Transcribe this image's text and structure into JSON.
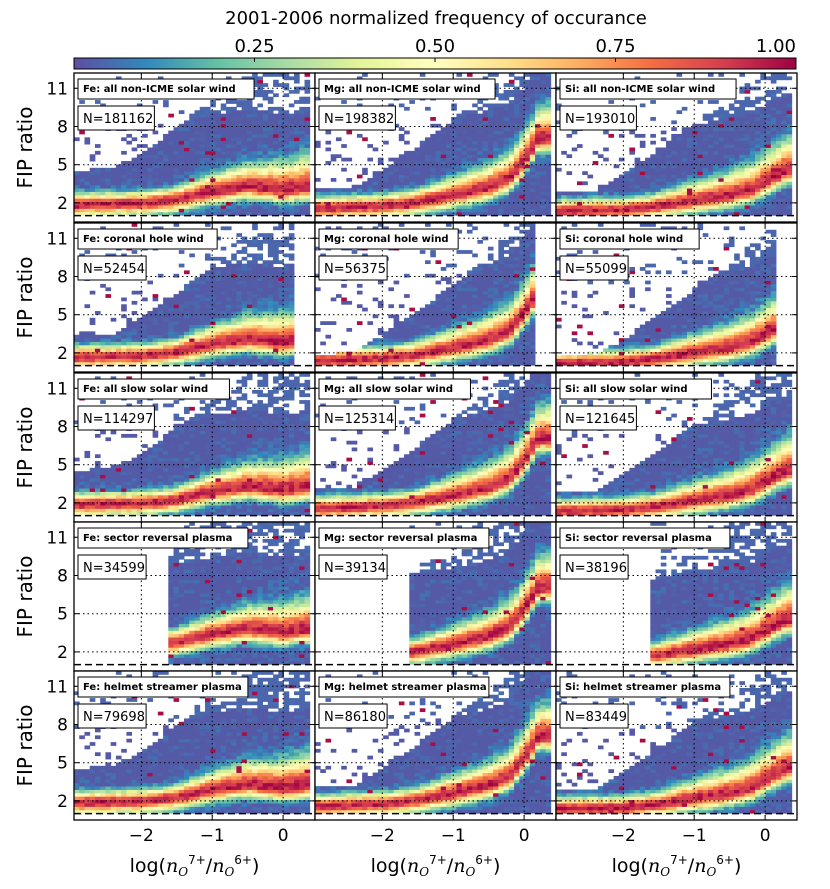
{
  "figure": {
    "colorbar_title": "2001-2006 normalized frequency of occurance",
    "colorbar_ticks": [
      0.25,
      0.5,
      0.75,
      1.0
    ],
    "colorbar_tick_labels": [
      "0.25",
      "0.50",
      "0.75",
      "1.00"
    ],
    "ylabel": "FIP ratio",
    "xlabel_main": "log(",
    "xlabel_num": "n",
    "xlabel_num_sub": "O",
    "xlabel_num_sup": "7+",
    "xlabel_sep": "/",
    "xlabel_den": "n",
    "xlabel_den_sub": "O",
    "xlabel_den_sup": "6+",
    "xlabel_close": ")"
  },
  "chart_data": {
    "type": "heatmap",
    "title": "2001-2006 normalized frequency of occurance",
    "xlabel": "log(n_O7+/n_O6+)",
    "ylabel": "FIP ratio",
    "xlim": [
      -2.95,
      0.45
    ],
    "ylim": [
      0.5,
      12.2
    ],
    "xticks": [
      -2,
      -1,
      0
    ],
    "xtick_labels": [
      "−2",
      "−1",
      "0"
    ],
    "yticks": [
      2,
      5,
      8,
      11
    ],
    "ytick_labels": [
      "2",
      "5",
      "8",
      "11"
    ],
    "dotted_x": [
      -2,
      -1,
      0
    ],
    "dotted_y": [
      2,
      5,
      8,
      11
    ],
    "dashed_y": 1,
    "elements": [
      "Fe",
      "Mg",
      "Si"
    ],
    "wind_types": [
      "all non-ICME solar wind",
      "coronal hole wind",
      "all slow solar wind",
      "sector reversal plasma",
      "helmet streamer plasma"
    ],
    "panels": [
      {
        "label": "Fe: all non-ICME solar wind",
        "n_label": "N=181162",
        "n": 181162
      },
      {
        "label": "Mg: all non-ICME solar wind",
        "n_label": "N=198382",
        "n": 198382
      },
      {
        "label": "Si: all non-ICME solar wind",
        "n_label": "N=193010",
        "n": 193010
      },
      {
        "label": "Fe: coronal hole wind",
        "n_label": "N=52454",
        "n": 52454
      },
      {
        "label": "Mg: coronal hole wind",
        "n_label": "N=56375",
        "n": 56375
      },
      {
        "label": "Si: coronal hole wind",
        "n_label": "N=55099",
        "n": 55099
      },
      {
        "label": "Fe: all slow solar wind",
        "n_label": "N=114297",
        "n": 114297
      },
      {
        "label": "Mg: all slow solar wind",
        "n_label": "N=125314",
        "n": 125314
      },
      {
        "label": "Si: all slow solar wind",
        "n_label": "N=121645",
        "n": 121645
      },
      {
        "label": "Fe: sector reversal plasma",
        "n_label": "N=34599",
        "n": 34599
      },
      {
        "label": "Mg: sector reversal plasma",
        "n_label": "N=39134",
        "n": 39134
      },
      {
        "label": "Si: sector reversal plasma",
        "n_label": "N=38196",
        "n": 38196
      },
      {
        "label": "Fe: helmet streamer plasma",
        "n_label": "N=79698",
        "n": 79698
      },
      {
        "label": "Mg: helmet streamer plasma",
        "n_label": "N=86180",
        "n": 86180
      },
      {
        "label": "Si: helmet streamer plasma",
        "n_label": "N=83449",
        "n": 83449
      }
    ],
    "ridge": {
      "Fe": [
        [
          -2.9,
          1.9
        ],
        [
          -2.0,
          2.0
        ],
        [
          -1.5,
          2.3
        ],
        [
          -1.0,
          2.9
        ],
        [
          -0.5,
          3.3
        ],
        [
          0.0,
          3.0
        ],
        [
          0.3,
          3.2
        ]
      ],
      "Mg": [
        [
          -2.9,
          1.6
        ],
        [
          -2.0,
          1.8
        ],
        [
          -1.5,
          2.1
        ],
        [
          -1.0,
          2.6
        ],
        [
          -0.5,
          3.2
        ],
        [
          -0.2,
          3.9
        ],
        [
          0.0,
          5.2
        ],
        [
          0.2,
          7.0
        ]
      ],
      "Si": [
        [
          -2.9,
          1.4
        ],
        [
          -2.0,
          1.5
        ],
        [
          -1.5,
          1.8
        ],
        [
          -1.0,
          2.2
        ],
        [
          -0.5,
          2.6
        ],
        [
          -0.2,
          3.0
        ],
        [
          0.0,
          3.6
        ],
        [
          0.3,
          4.5
        ]
      ]
    },
    "x_ranges_by_wind_type": [
      [
        -2.95,
        0.35
      ],
      [
        -2.95,
        0.15
      ],
      [
        -2.95,
        0.35
      ],
      [
        -1.6,
        0.35
      ],
      [
        -2.95,
        0.4
      ]
    ]
  }
}
